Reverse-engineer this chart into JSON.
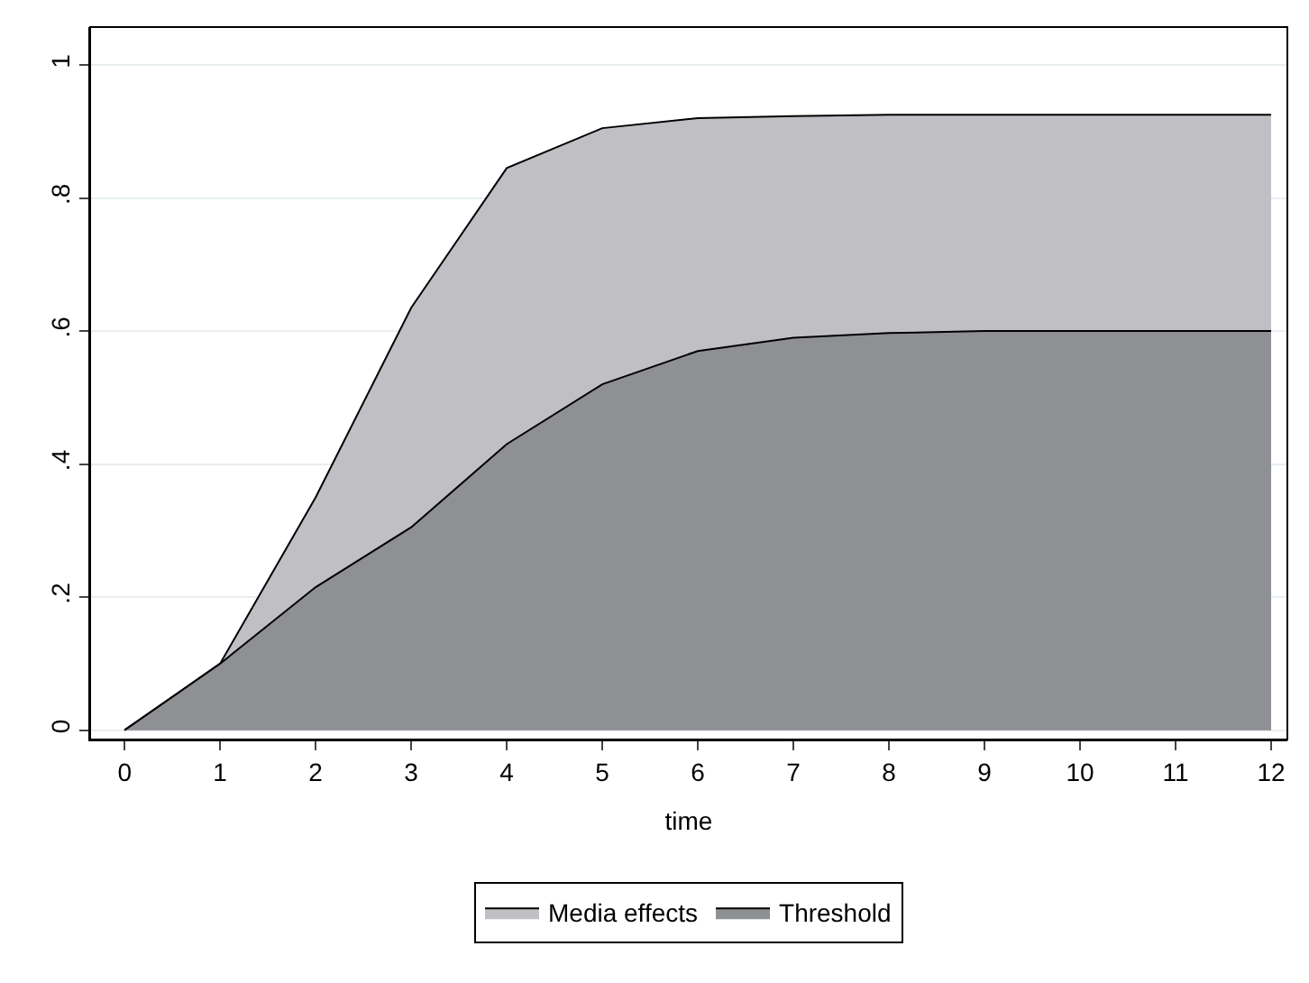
{
  "chart_data": {
    "type": "area",
    "xlabel": "time",
    "x": [
      0,
      1,
      2,
      3,
      4,
      5,
      6,
      7,
      8,
      9,
      10,
      11,
      12
    ],
    "series": [
      {
        "name": "Media effects",
        "color": "#bfbfc4",
        "values": [
          0,
          0.1,
          0.35,
          0.635,
          0.845,
          0.905,
          0.92,
          0.923,
          0.925,
          0.925,
          0.925,
          0.925,
          0.925
        ]
      },
      {
        "name": "Threshold",
        "color": "#8f9094",
        "values": [
          0,
          0.1,
          0.215,
          0.305,
          0.43,
          0.52,
          0.57,
          0.59,
          0.597,
          0.6,
          0.6,
          0.6,
          0.6
        ]
      }
    ],
    "xlim": [
      -0.36,
      12.17
    ],
    "xticks": [
      0,
      1,
      2,
      3,
      4,
      5,
      6,
      7,
      8,
      9,
      10,
      11,
      12
    ],
    "ylim": [
      -0.014,
      1.057
    ],
    "yticks": [
      {
        "value": 0,
        "label": "0"
      },
      {
        "value": 0.2,
        "label": ".2"
      },
      {
        "value": 0.4,
        "label": ".4"
      },
      {
        "value": 0.6,
        "label": ".6"
      },
      {
        "value": 0.8,
        "label": ".8"
      },
      {
        "value": 1,
        "label": "1"
      }
    ],
    "grid": "y",
    "legend": "bottom",
    "marker": "none",
    "line_style": "solid"
  }
}
